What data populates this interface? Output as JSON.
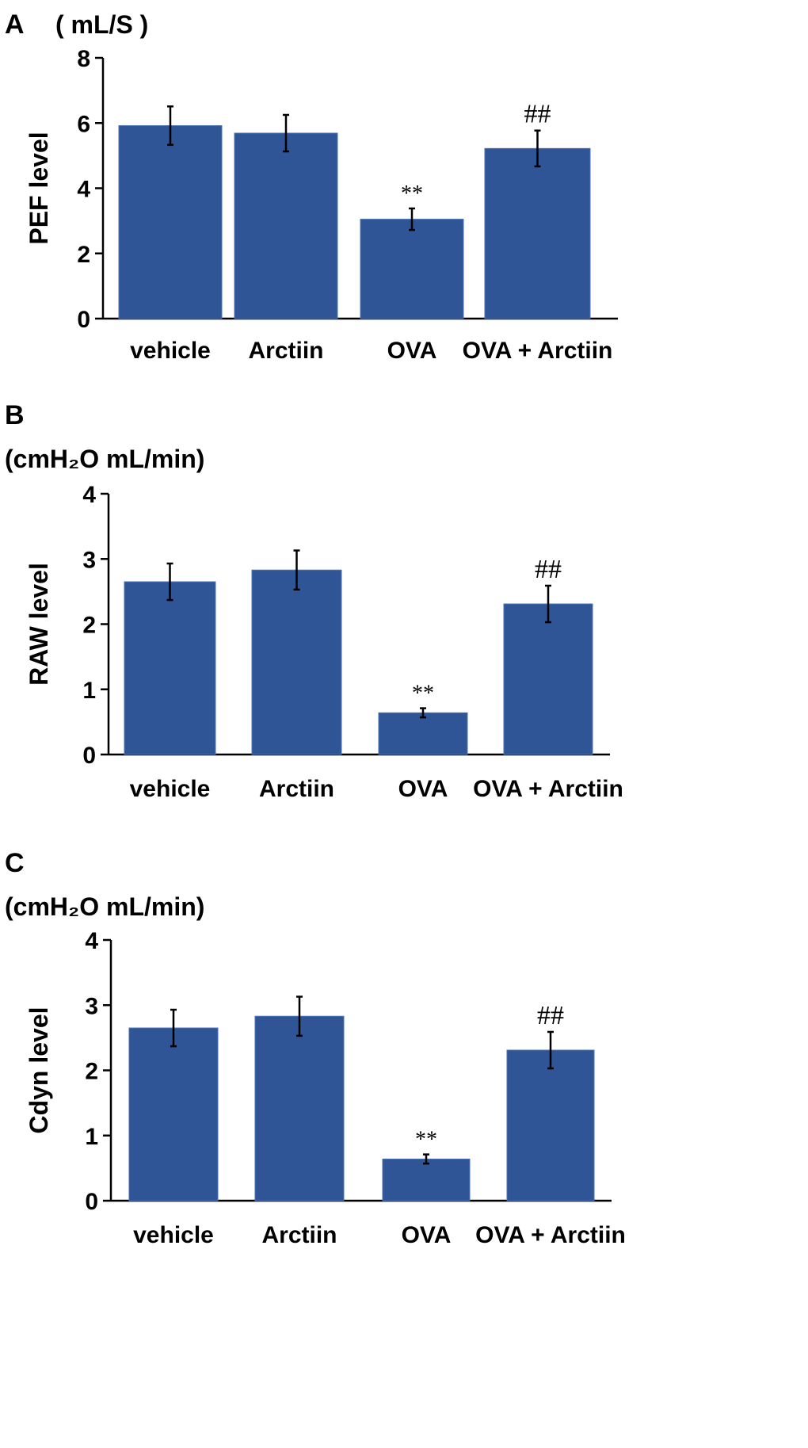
{
  "colors": {
    "bar": "#2f5597",
    "bar_edge": "#4a72b8",
    "axis": "#000000"
  },
  "chart_data": [
    {
      "type": "bar",
      "panel_label": "A",
      "unit": "( mL/S )",
      "ylabel": "PEF level",
      "ylim": [
        0,
        8
      ],
      "yticks": [
        0,
        2,
        4,
        6,
        8
      ],
      "categories": [
        "vehicle",
        "Arctiin",
        "OVA",
        "OVA + Arctiin"
      ],
      "values": [
        5.92,
        5.69,
        3.05,
        5.22
      ],
      "error": [
        0.59,
        0.56,
        0.33,
        0.55
      ],
      "annotations": [
        "",
        "",
        "**",
        "##"
      ]
    },
    {
      "type": "bar",
      "panel_label": "B",
      "unit": "(cmH₂O mL/min)",
      "ylabel": "RAW level",
      "ylim": [
        0,
        4
      ],
      "yticks": [
        0,
        1,
        2,
        3,
        4
      ],
      "categories": [
        "vehicle",
        "Arctiin",
        "OVA",
        "OVA + Arctiin"
      ],
      "values": [
        2.65,
        2.83,
        0.64,
        2.31
      ],
      "error": [
        0.28,
        0.3,
        0.07,
        0.28
      ],
      "annotations": [
        "",
        "",
        "**",
        "##"
      ]
    },
    {
      "type": "bar",
      "panel_label": "C",
      "unit": "(cmH₂O mL/min)",
      "ylabel": "Cdyn level",
      "ylim": [
        0,
        4
      ],
      "yticks": [
        0,
        1,
        2,
        3,
        4
      ],
      "categories": [
        "vehicle",
        "Arctiin",
        "OVA",
        "OVA + Arctiin"
      ],
      "values": [
        2.65,
        2.83,
        0.64,
        2.31
      ],
      "error": [
        0.28,
        0.3,
        0.07,
        0.28
      ],
      "annotations": [
        "",
        "",
        "**",
        "##"
      ]
    }
  ]
}
